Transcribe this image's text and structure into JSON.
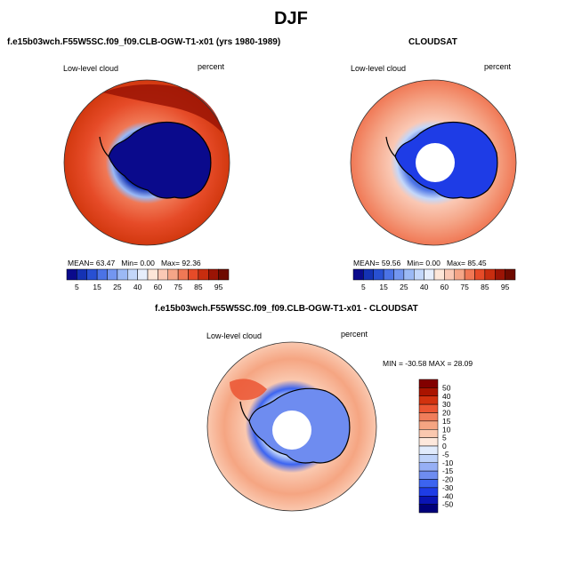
{
  "page": {
    "title": "DJF",
    "panel_left_title": "f.e15b03wch.F55W5SC.f09_f09.CLB-OGW-T1-x01 (yrs 1980-1989)",
    "panel_right_title": "CLOUDSAT",
    "panel_bottom_title": "f.e15b03wch.F55W5SC.f09_f09.CLB-OGW-T1-x01 - CLOUDSAT",
    "left": {
      "var_label": "Low-level cloud",
      "units": "percent",
      "mean_label": "MEAN=",
      "mean": "63.47",
      "min_label": "Min=",
      "min": "0.00",
      "max_label": "Max=",
      "max": "92.36"
    },
    "right": {
      "var_label": "Low-level cloud",
      "units": "percent",
      "mean_label": "MEAN=",
      "mean": "59.56",
      "min_label": "Min=",
      "min": "0.00",
      "max_label": "Max=",
      "max": "85.45"
    },
    "bottom": {
      "var_label": "Low-level cloud",
      "units": "percent",
      "minmax_label": "MIN = -30.58 MAX =  28.09"
    }
  },
  "chart_data": [
    {
      "type": "heatmap",
      "title": "Low-level cloud",
      "subtitle": "f.e15b03wch.F55W5SC.f09_f09.CLB-OGW-T1-x01 (yrs 1980-1989)",
      "units": "percent",
      "projection": "south-polar stereographic",
      "stats": {
        "mean": 63.47,
        "min": 0.0,
        "max": 92.36
      },
      "colorbar": {
        "orientation": "horizontal",
        "levels": [
          5,
          10,
          15,
          20,
          25,
          30,
          40,
          50,
          60,
          70,
          75,
          80,
          85,
          90,
          95
        ],
        "tick_labels": [
          "5",
          "15",
          "25",
          "40",
          "60",
          "75",
          "85",
          "95"
        ],
        "colors": [
          "#0a0a8c",
          "#1432b4",
          "#2850d2",
          "#4b73e6",
          "#7396f0",
          "#9bb9f5",
          "#c3d7fa",
          "#e6eefc",
          "#fde6d8",
          "#fac8b4",
          "#f5a587",
          "#f07855",
          "#e64b28",
          "#c82d0f",
          "#9b1405",
          "#6e0a00"
        ]
      },
      "regions": {
        "antarctic_interior": "0-5",
        "southern_ocean": "80-95"
      }
    },
    {
      "type": "heatmap",
      "title": "Low-level cloud",
      "subtitle": "CLOUDSAT",
      "units": "percent",
      "projection": "south-polar stereographic",
      "stats": {
        "mean": 59.56,
        "min": 0.0,
        "max": 85.45
      },
      "colorbar": {
        "orientation": "horizontal",
        "levels": [
          5,
          10,
          15,
          20,
          25,
          30,
          40,
          50,
          60,
          70,
          75,
          80,
          85,
          90,
          95
        ],
        "tick_labels": [
          "5",
          "15",
          "25",
          "40",
          "60",
          "75",
          "85",
          "95"
        ],
        "colors": [
          "#0a0a8c",
          "#1432b4",
          "#2850d2",
          "#4b73e6",
          "#7396f0",
          "#9bb9f5",
          "#c3d7fa",
          "#e6eefc",
          "#fde6d8",
          "#fac8b4",
          "#f5a587",
          "#f07855",
          "#e64b28",
          "#c82d0f",
          "#9b1405",
          "#6e0a00"
        ]
      },
      "regions": {
        "antarctic_interior": "0-10",
        "southern_ocean": "60-85",
        "pole_hole": "missing"
      }
    },
    {
      "type": "heatmap",
      "title": "Low-level cloud",
      "subtitle": "f.e15b03wch.F55W5SC.f09_f09.CLB-OGW-T1-x01 - CLOUDSAT",
      "units": "percent",
      "projection": "south-polar stereographic",
      "stats": {
        "min": -30.58,
        "max": 28.09
      },
      "colorbar": {
        "orientation": "vertical",
        "levels": [
          -50,
          -40,
          -30,
          -20,
          -15,
          -10,
          -5,
          0,
          5,
          10,
          15,
          20,
          30,
          40,
          50
        ],
        "tick_labels": [
          "50",
          "40",
          "30",
          "20",
          "15",
          "10",
          "5",
          "0",
          "-5",
          "-10",
          "-15",
          "-20",
          "-30",
          "-40",
          "-50"
        ],
        "colors": [
          "#00007a",
          "#0a14b4",
          "#1e3ce6",
          "#3c64f0",
          "#6e8cf0",
          "#96aff5",
          "#bed2fa",
          "#e1ebfc",
          "#fde8dc",
          "#fac8af",
          "#f5a582",
          "#f07d5a",
          "#eb5532",
          "#d2320f",
          "#aa1400",
          "#820000"
        ]
      }
    }
  ]
}
